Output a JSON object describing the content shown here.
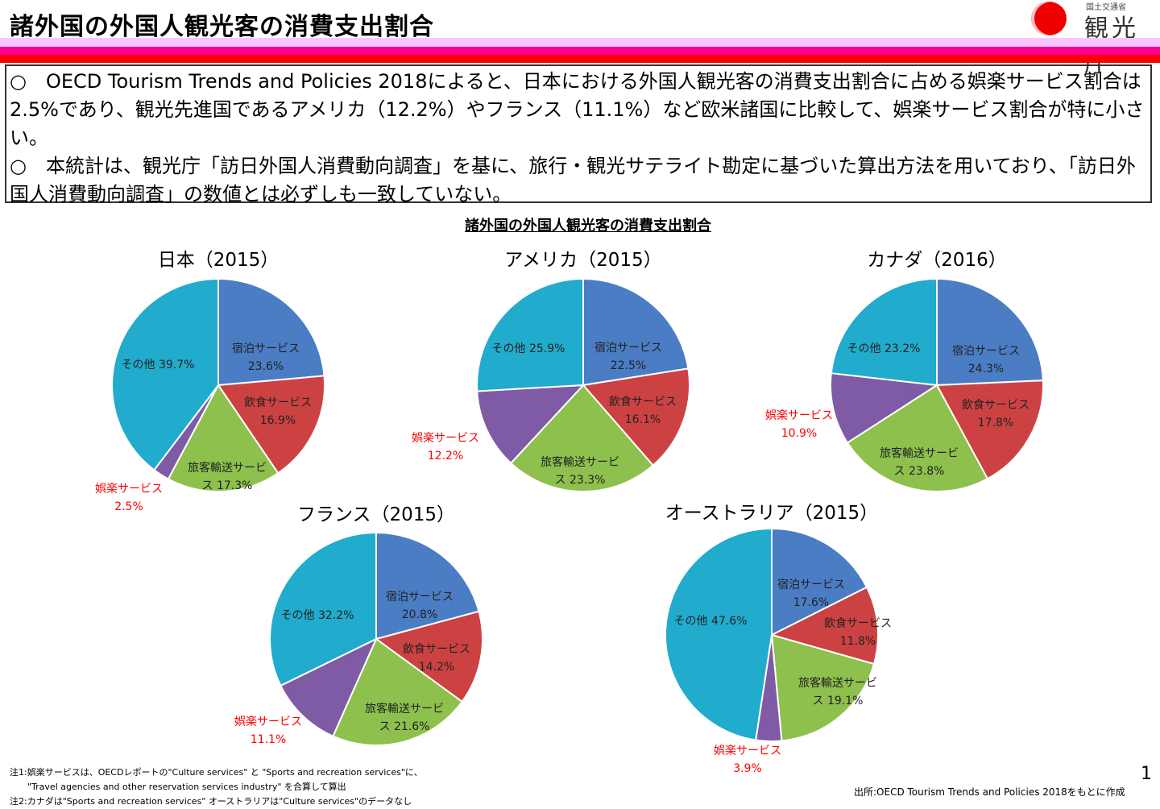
{
  "header": {
    "title": "諸外国の外国人観光客の消費支出割合",
    "logo_small": "国土交通省",
    "logo_text": "観光庁"
  },
  "summary": [
    "○　OECD Tourism Trends and Policies 2018によると、日本における外国人観光客の消費支出割合に占める娯楽サービス割合は2.5%であり、観光先進国であるアメリカ（12.2%）やフランス（11.1%）など欧米諸国に比較して、娯楽サービス割合が特に小さい。",
    "○　本統計は、観光庁「訪日外国人消費動向調査」を基に、旅行・観光サテライト勘定に基づいた算出方法を用いており、「訪日外国人消費動向調査」の数値とは必ずしも一致していない。"
  ],
  "colors": {
    "宿泊サービス": "#4a7dc4",
    "飲食サービス": "#cc4242",
    "旅客輸送サービス": "#8dc04d",
    "娯楽サービス": "#7f5aa5",
    "その他": "#21abcc",
    "highlight_label": "#ff0000"
  },
  "chart_data": [
    {
      "type": "pie",
      "title": "諸外国の外国人観光客の消費支出割合",
      "show_title": true
    },
    {
      "type": "pie",
      "title": "日本（2015）",
      "categories": [
        "宿泊サービス",
        "飲食サービス",
        "旅客輸送サービス",
        "娯楽サービス",
        "その他"
      ],
      "values": [
        23.6,
        16.9,
        17.3,
        2.5,
        39.7
      ]
    },
    {
      "type": "pie",
      "title": "アメリカ（2015）",
      "categories": [
        "宿泊サービス",
        "飲食サービス",
        "旅客輸送サービス",
        "娯楽サービス",
        "その他"
      ],
      "values": [
        22.5,
        16.1,
        23.3,
        12.2,
        25.9
      ]
    },
    {
      "type": "pie",
      "title": "カナダ（2016）",
      "categories": [
        "宿泊サービス",
        "飲食サービス",
        "旅客輸送サービス",
        "娯楽サービス",
        "その他"
      ],
      "values": [
        24.3,
        17.8,
        23.8,
        10.9,
        23.2
      ]
    },
    {
      "type": "pie",
      "title": "フランス（2015）",
      "categories": [
        "宿泊サービス",
        "飲食サービス",
        "旅客輸送サービス",
        "娯楽サービス",
        "その他"
      ],
      "values": [
        20.8,
        14.2,
        21.6,
        11.1,
        32.2
      ]
    },
    {
      "type": "pie",
      "title": "オーストラリア（2015）",
      "categories": [
        "宿泊サービス",
        "飲食サービス",
        "旅客輸送サービス",
        "娯楽サービス",
        "その他"
      ],
      "values": [
        17.6,
        11.8,
        19.1,
        3.9,
        47.6
      ]
    }
  ],
  "notes": [
    "注1:娯楽サービスは、OECDレポートの\"Culture services\" と \"Sports and recreation services\"に、",
    "　　\"Travel agencies and other reservation services industry\" を合算して算出",
    "注2:カナダは\"Sports and recreation services\"  オーストラリアは\"Culture services\"のデータなし"
  ],
  "source": "出所:OECD Tourism Trends and Policies 2018をもとに作成",
  "page_number": "1"
}
